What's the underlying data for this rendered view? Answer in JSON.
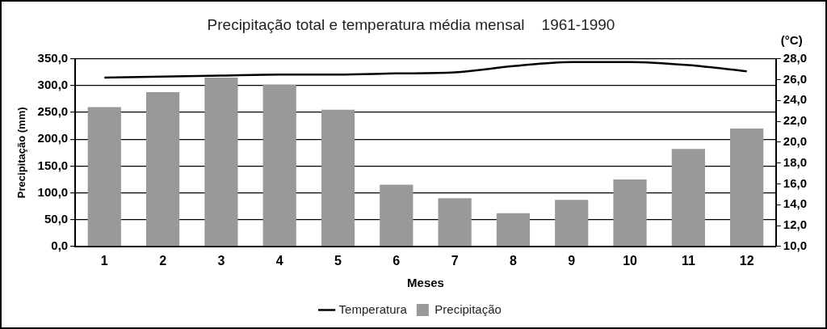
{
  "chart_data": {
    "type": "bar",
    "title": "Precipitação total e temperatura média mensal    1961-1990",
    "x_label": "Meses",
    "y_label": "Precipitação (mm)",
    "y2_label": "(°C)",
    "categories": [
      "1",
      "2",
      "3",
      "4",
      "5",
      "6",
      "7",
      "8",
      "9",
      "10",
      "11",
      "12"
    ],
    "series": [
      {
        "name": "Precipitação",
        "type": "bar",
        "color": "#999999",
        "values": [
          260,
          288,
          315,
          302,
          255,
          115,
          90,
          62,
          87,
          125,
          182,
          220
        ]
      },
      {
        "name": "Temperatura",
        "type": "line",
        "color": "#000000",
        "axis": "y2",
        "marker": "none",
        "line_style": "solid",
        "values": [
          26.2,
          26.3,
          26.4,
          26.5,
          26.5,
          26.6,
          26.7,
          27.3,
          27.7,
          27.7,
          27.4,
          26.8
        ]
      }
    ],
    "ylim": [
      0,
      350
    ],
    "yticks": [
      {
        "value": 0,
        "label": "0,0"
      },
      {
        "value": 50,
        "label": "50,0"
      },
      {
        "value": 100,
        "label": "100,0"
      },
      {
        "value": 150,
        "label": "150,0"
      },
      {
        "value": 200,
        "label": "200,0"
      },
      {
        "value": 250,
        "label": "250,0"
      },
      {
        "value": 300,
        "label": "300,0"
      },
      {
        "value": 350,
        "label": "350,0"
      }
    ],
    "y2lim": [
      10,
      28
    ],
    "y2ticks": [
      {
        "value": 10,
        "label": "10,0"
      },
      {
        "value": 12,
        "label": "12,0"
      },
      {
        "value": 14,
        "label": "14,0"
      },
      {
        "value": 16,
        "label": "16,0"
      },
      {
        "value": 18,
        "label": "18,0"
      },
      {
        "value": 20,
        "label": "20,0"
      },
      {
        "value": 22,
        "label": "22,0"
      },
      {
        "value": 24,
        "label": "24,0"
      },
      {
        "value": 26,
        "label": "26,0"
      },
      {
        "value": 28,
        "label": "28,0"
      }
    ],
    "grid": true,
    "legend": "bottom"
  }
}
